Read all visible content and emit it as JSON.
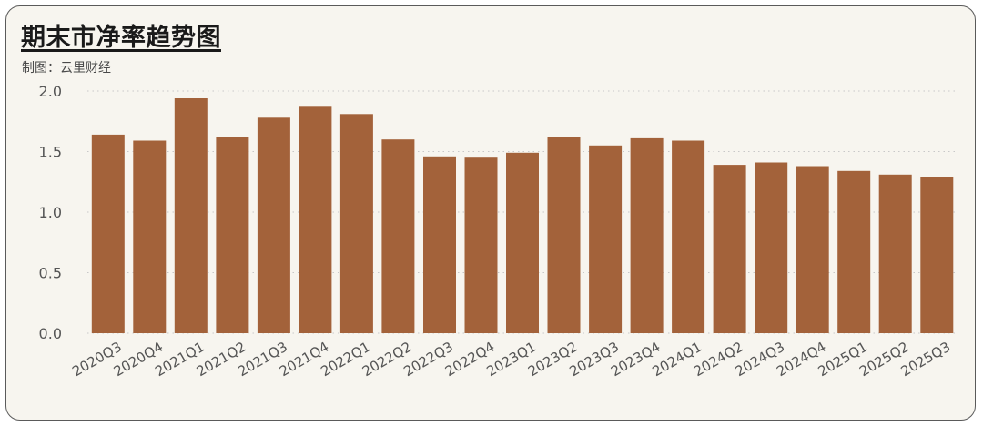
{
  "title": "期末市净率趋势图",
  "subtitle": "制图：云里财经",
  "colors": {
    "bar": "#a3623a",
    "background": "#f7f5ef",
    "grid": "#c8c8c8"
  },
  "chart_data": {
    "type": "bar",
    "title": "期末市净率趋势图",
    "xlabel": "",
    "ylabel": "",
    "ylim": [
      0,
      2.0
    ],
    "yticks": [
      "0.0",
      "0.5",
      "1.0",
      "1.5",
      "2.0"
    ],
    "grid": true,
    "categories": [
      "2020Q3",
      "2020Q4",
      "2021Q1",
      "2021Q2",
      "2021Q3",
      "2021Q4",
      "2022Q1",
      "2022Q2",
      "2022Q3",
      "2022Q4",
      "2023Q1",
      "2023Q2",
      "2023Q3",
      "2023Q4",
      "2024Q1",
      "2024Q2",
      "2024Q3",
      "2024Q4",
      "2025Q1",
      "2025Q2",
      "2025Q3"
    ],
    "values": [
      1.64,
      1.59,
      1.94,
      1.62,
      1.78,
      1.87,
      1.81,
      1.6,
      1.46,
      1.45,
      1.49,
      1.62,
      1.55,
      1.61,
      1.59,
      1.39,
      1.41,
      1.38,
      1.34,
      1.31,
      1.29
    ]
  }
}
